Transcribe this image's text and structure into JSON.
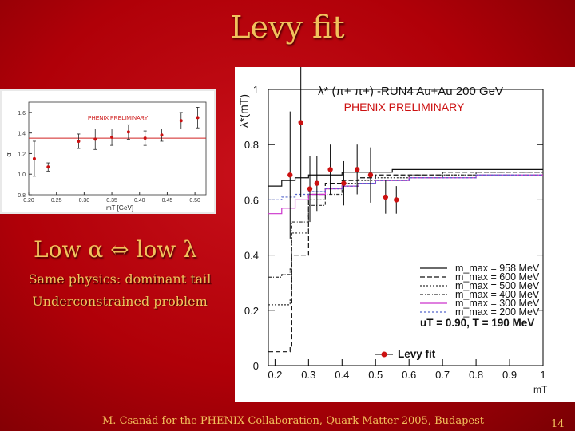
{
  "slide": {
    "title": "Levy fit",
    "heading": "Low α ⇔ low λ",
    "bullets": [
      "Same physics: dominant tail",
      "Underconstrained problem"
    ],
    "footer": "M. Csanád for the PHENIX Collaboration, Quark Matter 2005, Budapest",
    "page_number": "14",
    "text_color": "#f2c15c",
    "background_color": "#b5000a"
  },
  "chart_data": [
    {
      "type": "scatter",
      "title": "λ* (π+ π+) -RUN4 Au+Au 200 GeV",
      "annotation": "PHENIX PRELIMINARY",
      "ylabel": "λ*(mT)",
      "xlabel": "mT",
      "xlim": [
        0.18,
        1.0
      ],
      "ylim": [
        0,
        1.0
      ],
      "xticks": [
        "0.2",
        "0.3",
        "0.4",
        "0.5",
        "0.6",
        "0.7",
        "0.8",
        "0.9",
        "1"
      ],
      "yticks": [
        "0",
        "0.2",
        "0.4",
        "0.6",
        "0.8",
        "1"
      ],
      "points": [
        {
          "x": 0.245,
          "y": 0.69,
          "err": 0.23
        },
        {
          "x": 0.277,
          "y": 0.88,
          "err": 0.27
        },
        {
          "x": 0.304,
          "y": 0.64,
          "err": 0.12
        },
        {
          "x": 0.325,
          "y": 0.66,
          "err": 0.1
        },
        {
          "x": 0.365,
          "y": 0.71,
          "err": 0.09
        },
        {
          "x": 0.405,
          "y": 0.66,
          "err": 0.08
        },
        {
          "x": 0.445,
          "y": 0.71,
          "err": 0.09
        },
        {
          "x": 0.485,
          "y": 0.69,
          "err": 0.1
        },
        {
          "x": 0.53,
          "y": 0.61,
          "err": 0.06
        },
        {
          "x": 0.562,
          "y": 0.6,
          "err": 0.05
        }
      ],
      "series": [
        {
          "name": "m_max = 958 MeV",
          "color": "#111111",
          "dash": "",
          "x": [
            0.18,
            0.22,
            0.26,
            0.3,
            0.35,
            0.4,
            0.45,
            0.5,
            0.55,
            0.6,
            0.7,
            0.8,
            0.9,
            1.0
          ],
          "y": [
            0.65,
            0.67,
            0.68,
            0.69,
            0.69,
            0.7,
            0.7,
            0.7,
            0.71,
            0.71,
            0.71,
            0.71,
            0.71,
            0.71
          ]
        },
        {
          "name": "m_max = 600 MeV",
          "color": "#111111",
          "dash": "6,3",
          "x": [
            0.18,
            0.22,
            0.245,
            0.25,
            0.3,
            0.35,
            0.4,
            0.45,
            0.5,
            0.6,
            0.7,
            0.8,
            0.9,
            1.0
          ],
          "y": [
            0.05,
            0.05,
            0.07,
            0.4,
            0.62,
            0.66,
            0.67,
            0.68,
            0.69,
            0.69,
            0.7,
            0.7,
            0.7,
            0.7
          ]
        },
        {
          "name": "m_max = 500 MeV",
          "color": "#333333",
          "dash": "2,2",
          "x": [
            0.18,
            0.22,
            0.245,
            0.25,
            0.3,
            0.35,
            0.4,
            0.45,
            0.5,
            0.6,
            0.7,
            0.8,
            0.9,
            1.0
          ],
          "y": [
            0.22,
            0.22,
            0.24,
            0.48,
            0.6,
            0.64,
            0.66,
            0.67,
            0.68,
            0.69,
            0.69,
            0.7,
            0.7,
            0.7
          ]
        },
        {
          "name": "m_max = 400 MeV",
          "color": "#333333",
          "dash": "4,2,1,2",
          "x": [
            0.18,
            0.22,
            0.245,
            0.25,
            0.3,
            0.35,
            0.4,
            0.45,
            0.5,
            0.6,
            0.7,
            0.8,
            0.9,
            1.0
          ],
          "y": [
            0.32,
            0.33,
            0.35,
            0.52,
            0.58,
            0.62,
            0.65,
            0.66,
            0.67,
            0.68,
            0.69,
            0.69,
            0.69,
            0.69
          ]
        },
        {
          "name": "m_max = 300 MeV",
          "color": "#cc33cc",
          "dash": "",
          "x": [
            0.18,
            0.22,
            0.26,
            0.3,
            0.35,
            0.4,
            0.45,
            0.5,
            0.6,
            0.7,
            0.8,
            0.9,
            1.0
          ],
          "y": [
            0.55,
            0.57,
            0.6,
            0.62,
            0.64,
            0.65,
            0.66,
            0.67,
            0.68,
            0.68,
            0.69,
            0.69,
            0.69
          ]
        },
        {
          "name": "m_max = 200 MeV",
          "color": "#5566cc",
          "dash": "3,2",
          "x": [
            0.18,
            0.22,
            0.26,
            0.3,
            0.35,
            0.4,
            0.45,
            0.5,
            0.6,
            0.7,
            0.8,
            0.9,
            1.0
          ],
          "y": [
            0.6,
            0.61,
            0.62,
            0.63,
            0.64,
            0.65,
            0.66,
            0.67,
            0.68,
            0.68,
            0.69,
            0.69,
            0.69
          ]
        }
      ],
      "legend": [
        {
          "label": "m_max = 958 MeV",
          "color": "#111111",
          "dash": ""
        },
        {
          "label": "m_max = 600 MeV",
          "color": "#111111",
          "dash": "6,3"
        },
        {
          "label": "m_max = 500 MeV",
          "color": "#333333",
          "dash": "2,2"
        },
        {
          "label": "m_max = 400 MeV",
          "color": "#333333",
          "dash": "4,2,1,2"
        },
        {
          "label": "m_max = 300 MeV",
          "color": "#cc33cc",
          "dash": ""
        },
        {
          "label": "m_max = 200 MeV",
          "color": "#5566cc",
          "dash": "3,2"
        }
      ],
      "params_text": "uT = 0.90, T = 190 MeV",
      "fit_label": "Levy fit",
      "point_color": "#cc1111",
      "annotation_color": "#cc1111"
    },
    {
      "type": "scatter",
      "annotation": "PHENIX PRELIMINARY",
      "ylabel": "α",
      "xlabel": "mT [GeV]",
      "xlim": [
        0.2,
        0.52
      ],
      "ylim": [
        0.8,
        1.7
      ],
      "xticks": [
        {
          "v": 0.2,
          "t": "0.20"
        },
        {
          "v": 0.25,
          "t": "0.25"
        },
        {
          "v": 0.3,
          "t": "0.30"
        },
        {
          "v": 0.35,
          "t": "0.35"
        },
        {
          "v": 0.4,
          "t": "0.40"
        },
        {
          "v": 0.45,
          "t": "0.45"
        },
        {
          "v": 0.5,
          "t": "0.50"
        }
      ],
      "yticks": [
        {
          "v": 0.8,
          "t": "0.8"
        },
        {
          "v": 1.0,
          "t": "1.0"
        },
        {
          "v": 1.2,
          "t": "1.2"
        },
        {
          "v": 1.4,
          "t": "1.4"
        },
        {
          "v": 1.6,
          "t": "1.6"
        }
      ],
      "fit_value": 1.35,
      "points": [
        {
          "x": 0.21,
          "y": 1.15,
          "err": 0.17
        },
        {
          "x": 0.235,
          "y": 1.07,
          "err": 0.04
        },
        {
          "x": 0.29,
          "y": 1.32,
          "err": 0.07
        },
        {
          "x": 0.32,
          "y": 1.34,
          "err": 0.1
        },
        {
          "x": 0.35,
          "y": 1.36,
          "err": 0.08
        },
        {
          "x": 0.38,
          "y": 1.41,
          "err": 0.07
        },
        {
          "x": 0.41,
          "y": 1.35,
          "err": 0.07
        },
        {
          "x": 0.44,
          "y": 1.38,
          "err": 0.06
        },
        {
          "x": 0.475,
          "y": 1.52,
          "err": 0.08
        },
        {
          "x": 0.505,
          "y": 1.55,
          "err": 0.1
        }
      ],
      "point_color": "#cc1111",
      "fit_color": "#d02020"
    }
  ]
}
